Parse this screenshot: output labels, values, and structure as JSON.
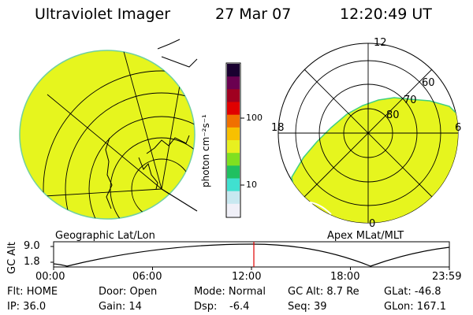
{
  "header": {
    "instrument": "Ultraviolet Imager",
    "date": "27 Mar 07",
    "time": "12:20:49 UT"
  },
  "panels": {
    "left_label": "Geographic Lat/Lon",
    "right_label": "Apex MLat/MLT"
  },
  "colorbar": {
    "unit_label": "photon cm⁻²s⁻¹",
    "tick_100": "100",
    "tick_10": "10",
    "colors": [
      "#f0f0f8",
      "#c8e8f0",
      "#40e0d0",
      "#20c060",
      "#80e020",
      "#e8f020",
      "#f8c000",
      "#f07000",
      "#e00000",
      "#a00020",
      "#6a0050",
      "#1a0030"
    ]
  },
  "polar_plot": {
    "mlt_labels": [
      "12",
      "18",
      "6",
      "0"
    ],
    "mlat_labels": [
      "60",
      "70",
      "80"
    ]
  },
  "orbit": {
    "ylabel": "GC Alt",
    "y_max_label": "9.0",
    "y_min_label": "1.8",
    "x_ticks": [
      "00:00",
      "06:00",
      "12:00",
      "18:00",
      "23:59"
    ],
    "marker_time": "12:20:49"
  },
  "status": {
    "flt": "Flt: HOME",
    "ip": "IP: 36.0",
    "door": "Door: Open",
    "gain": "Gain: 14",
    "mode": "Mode: Normal",
    "dsp": "Dsp:",
    "dsp_value": "-6.4",
    "gc_alt": "GC Alt: 8.7 Re",
    "seq": "Seq: 39",
    "glat": "GLat: -46.8",
    "glon": "GLon: 167.1"
  },
  "style": {
    "emission_fill": "#e6f51e",
    "marker_color": "#e00000"
  }
}
